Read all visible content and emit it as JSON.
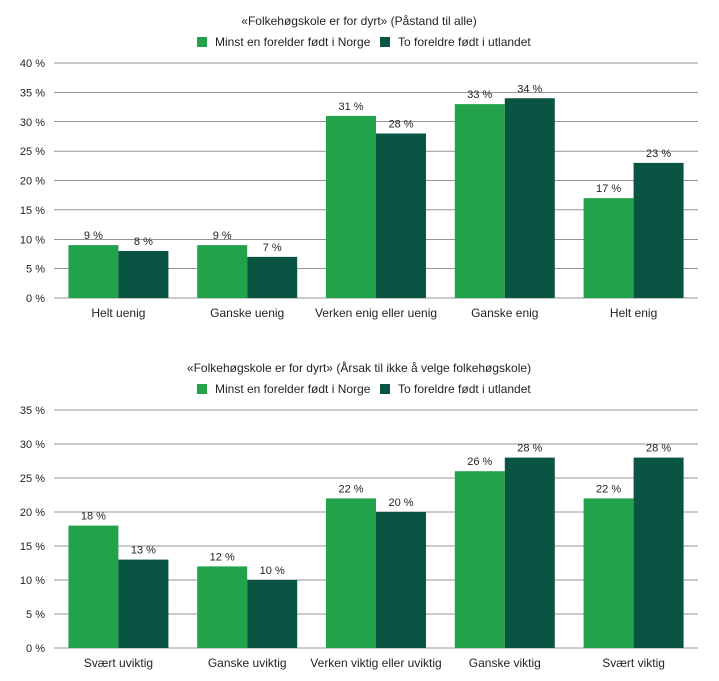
{
  "colors": {
    "series_a": "#22a24a",
    "series_b": "#0a5444",
    "grid": "#2b2b2b",
    "text": "#231f20"
  },
  "chart_data": [
    {
      "type": "bar",
      "title": "«Folkehøgskole er for dyrt» (Påstand til alle)",
      "categories": [
        "Helt uenig",
        "Ganske uenig",
        "Verken enig eller uenig",
        "Ganske enig",
        "Helt enig"
      ],
      "series": [
        {
          "name": "Minst en forelder født i Norge",
          "values": [
            9,
            9,
            31,
            33,
            17
          ]
        },
        {
          "name": "To foreldre født i utlandet",
          "values": [
            8,
            7,
            28,
            34,
            23
          ]
        }
      ],
      "ylim": [
        0,
        40
      ],
      "yticks": [
        0,
        5,
        10,
        15,
        20,
        25,
        30,
        35,
        40
      ],
      "value_suffix": " %",
      "grid": true,
      "legend": "top"
    },
    {
      "type": "bar",
      "title": "«Folkehøgskole er for dyrt» (Årsak til ikke å velge folkehøgskole)",
      "categories": [
        "Svært uviktig",
        "Ganske uviktig",
        "Verken viktig eller uviktig",
        "Ganske viktig",
        "Svært viktig"
      ],
      "series": [
        {
          "name": "Minst en forelder født i Norge",
          "values": [
            18,
            12,
            22,
            26,
            22
          ]
        },
        {
          "name": "To foreldre født i utlandet",
          "values": [
            13,
            10,
            20,
            28,
            28
          ]
        }
      ],
      "ylim": [
        0,
        35
      ],
      "yticks": [
        0,
        5,
        10,
        15,
        20,
        25,
        30,
        35
      ],
      "value_suffix": " %",
      "grid": true,
      "legend": "top"
    }
  ]
}
